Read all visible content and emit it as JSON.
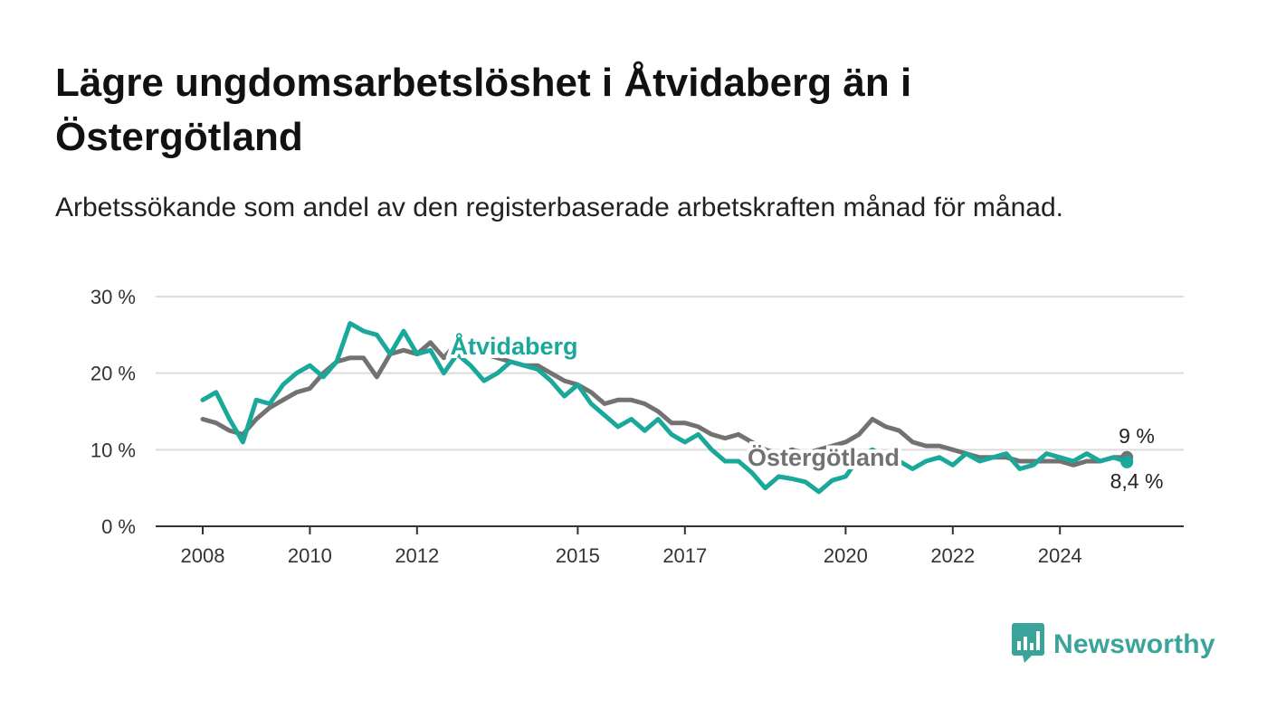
{
  "title": "Lägre ungdomsarbetslöshet i Åtvidaberg än i Östergötland",
  "subtitle": "Arbetssökande som andel av den registerbaserade arbetskraften månad för månad.",
  "brand": {
    "name": "Newsworthy",
    "icon": "newsworthy-logo-icon",
    "color": "#3aa39a"
  },
  "chart_data": {
    "type": "line",
    "title": "Lägre ungdomsarbetslöshet i Åtvidaberg än i Östergötland",
    "subtitle": "Arbetssökande som andel av den registerbaserade arbetskraften månad för månad.",
    "xlabel": "",
    "ylabel": "",
    "x_ticks": [
      "2008",
      "2010",
      "2012",
      "2015",
      "2017",
      "2020",
      "2022",
      "2024"
    ],
    "y_ticks": [
      "0 %",
      "10 %",
      "20 %",
      "30 %"
    ],
    "ylim": [
      0,
      30
    ],
    "xlim": [
      "2008-01",
      "2025-06"
    ],
    "grid": true,
    "legend": "inline labels",
    "series": [
      {
        "name": "Åtvidaberg",
        "color": "#1aa89a",
        "end_label": "8,4 %",
        "points": [
          [
            "2008-01",
            16.5
          ],
          [
            "2008-04",
            17.5
          ],
          [
            "2008-07",
            14
          ],
          [
            "2008-10",
            11
          ],
          [
            "2009-01",
            16.5
          ],
          [
            "2009-04",
            16
          ],
          [
            "2009-07",
            18.5
          ],
          [
            "2009-10",
            20
          ],
          [
            "2010-01",
            21
          ],
          [
            "2010-04",
            19.5
          ],
          [
            "2010-07",
            21.5
          ],
          [
            "2010-10",
            26.5
          ],
          [
            "2011-01",
            25.5
          ],
          [
            "2011-04",
            25
          ],
          [
            "2011-07",
            22.5
          ],
          [
            "2011-10",
            25.5
          ],
          [
            "2012-01",
            22.5
          ],
          [
            "2012-04",
            23
          ],
          [
            "2012-07",
            20
          ],
          [
            "2012-10",
            22.5
          ],
          [
            "2013-01",
            21
          ],
          [
            "2013-04",
            19
          ],
          [
            "2013-07",
            20
          ],
          [
            "2013-10",
            21.5
          ],
          [
            "2014-01",
            21
          ],
          [
            "2014-04",
            20.5
          ],
          [
            "2014-07",
            19
          ],
          [
            "2014-10",
            17
          ],
          [
            "2015-01",
            18.5
          ],
          [
            "2015-04",
            16
          ],
          [
            "2015-07",
            14.5
          ],
          [
            "2015-10",
            13
          ],
          [
            "2016-01",
            14
          ],
          [
            "2016-04",
            12.5
          ],
          [
            "2016-07",
            14
          ],
          [
            "2016-10",
            12
          ],
          [
            "2017-01",
            11
          ],
          [
            "2017-04",
            12
          ],
          [
            "2017-07",
            10
          ],
          [
            "2017-10",
            8.5
          ],
          [
            "2018-01",
            8.5
          ],
          [
            "2018-04",
            7
          ],
          [
            "2018-07",
            5
          ],
          [
            "2018-10",
            6.5
          ],
          [
            "2019-01",
            6.2
          ],
          [
            "2019-04",
            5.8
          ],
          [
            "2019-07",
            4.5
          ],
          [
            "2019-10",
            6
          ],
          [
            "2020-01",
            6.5
          ],
          [
            "2020-04",
            9
          ],
          [
            "2020-07",
            10
          ],
          [
            "2020-10",
            9
          ],
          [
            "2021-01",
            8.5
          ],
          [
            "2021-04",
            7.5
          ],
          [
            "2021-07",
            8.5
          ],
          [
            "2021-10",
            9
          ],
          [
            "2022-01",
            8
          ],
          [
            "2022-04",
            9.5
          ],
          [
            "2022-07",
            8.5
          ],
          [
            "2022-10",
            9
          ],
          [
            "2023-01",
            9.5
          ],
          [
            "2023-04",
            7.5
          ],
          [
            "2023-07",
            8
          ],
          [
            "2023-10",
            9.5
          ],
          [
            "2024-01",
            9
          ],
          [
            "2024-04",
            8.5
          ],
          [
            "2024-07",
            9.5
          ],
          [
            "2024-10",
            8.5
          ],
          [
            "2025-01",
            9
          ],
          [
            "2025-04",
            8.4
          ]
        ]
      },
      {
        "name": "Östergötland",
        "color": "#727272",
        "end_label": "9 %",
        "points": [
          [
            "2008-01",
            14
          ],
          [
            "2008-04",
            13.5
          ],
          [
            "2008-07",
            12.5
          ],
          [
            "2008-10",
            12
          ],
          [
            "2009-01",
            14
          ],
          [
            "2009-04",
            15.5
          ],
          [
            "2009-07",
            16.5
          ],
          [
            "2009-10",
            17.5
          ],
          [
            "2010-01",
            18
          ],
          [
            "2010-04",
            20
          ],
          [
            "2010-07",
            21.5
          ],
          [
            "2010-10",
            22
          ],
          [
            "2011-01",
            22
          ],
          [
            "2011-04",
            19.5
          ],
          [
            "2011-07",
            22.5
          ],
          [
            "2011-10",
            23
          ],
          [
            "2012-01",
            22.5
          ],
          [
            "2012-04",
            24
          ],
          [
            "2012-07",
            22
          ],
          [
            "2012-10",
            24
          ],
          [
            "2013-01",
            23
          ],
          [
            "2013-04",
            22.5
          ],
          [
            "2013-07",
            22
          ],
          [
            "2013-10",
            21.5
          ],
          [
            "2014-01",
            21
          ],
          [
            "2014-04",
            21
          ],
          [
            "2014-07",
            20
          ],
          [
            "2014-10",
            19
          ],
          [
            "2015-01",
            18.5
          ],
          [
            "2015-04",
            17.5
          ],
          [
            "2015-07",
            16
          ],
          [
            "2015-10",
            16.5
          ],
          [
            "2016-01",
            16.5
          ],
          [
            "2016-04",
            16
          ],
          [
            "2016-07",
            15
          ],
          [
            "2016-10",
            13.5
          ],
          [
            "2017-01",
            13.5
          ],
          [
            "2017-04",
            13
          ],
          [
            "2017-07",
            12
          ],
          [
            "2017-10",
            11.5
          ],
          [
            "2018-01",
            12
          ],
          [
            "2018-04",
            11
          ],
          [
            "2018-07",
            10
          ],
          [
            "2018-10",
            9.5
          ],
          [
            "2019-01",
            10
          ],
          [
            "2019-04",
            9.5
          ],
          [
            "2019-07",
            10
          ],
          [
            "2019-10",
            10.5
          ],
          [
            "2020-01",
            11
          ],
          [
            "2020-04",
            12
          ],
          [
            "2020-07",
            14
          ],
          [
            "2020-10",
            13
          ],
          [
            "2021-01",
            12.5
          ],
          [
            "2021-04",
            11
          ],
          [
            "2021-07",
            10.5
          ],
          [
            "2021-10",
            10.5
          ],
          [
            "2022-01",
            10
          ],
          [
            "2022-04",
            9.5
          ],
          [
            "2022-07",
            9
          ],
          [
            "2022-10",
            9
          ],
          [
            "2023-01",
            9
          ],
          [
            "2023-04",
            8.5
          ],
          [
            "2023-07",
            8.5
          ],
          [
            "2023-10",
            8.5
          ],
          [
            "2024-01",
            8.5
          ],
          [
            "2024-04",
            8
          ],
          [
            "2024-07",
            8.5
          ],
          [
            "2024-10",
            8.5
          ],
          [
            "2025-01",
            9
          ],
          [
            "2025-04",
            9
          ]
        ]
      }
    ]
  }
}
